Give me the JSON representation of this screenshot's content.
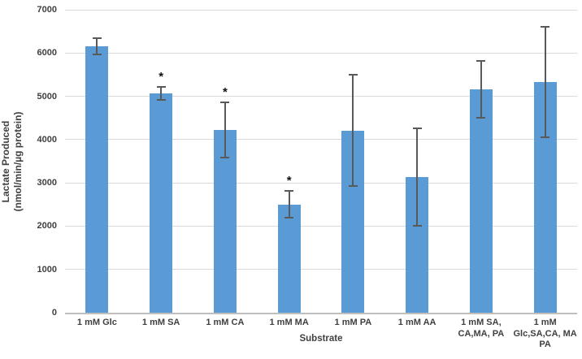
{
  "chart_data": {
    "type": "bar",
    "title": "",
    "xlabel": "Substrate",
    "ylabel": "Lactate Produced\n(nmol/min/µg protein)",
    "ylim": [
      0,
      7000
    ],
    "yticks": [
      0,
      1000,
      2000,
      3000,
      4000,
      5000,
      6000,
      7000
    ],
    "grid": true,
    "legend": "none",
    "categories": [
      "1 mM Glc",
      "1 mM SA",
      "1 mM CA",
      "1 mM MA",
      "1 mM PA",
      "1 mM AA",
      "1 mM SA,\nCA,MA, PA",
      "1 mM\nGlc,SA,CA, MA\nPA"
    ],
    "values": [
      6150,
      5070,
      4220,
      2500,
      4210,
      3130,
      5160,
      5330
    ],
    "error_bars": [
      190,
      150,
      640,
      310,
      1290,
      1130,
      660,
      1270
    ],
    "significant": [
      false,
      true,
      true,
      true,
      false,
      false,
      false,
      false
    ],
    "significance_marker": "*",
    "colors": {
      "bar": "#5B9BD5",
      "error_bar": "#595959",
      "gridline": "#D9D9D9",
      "axis_line": "#BFBFBF",
      "text": "#404040",
      "background": "#FFFFFF"
    }
  }
}
